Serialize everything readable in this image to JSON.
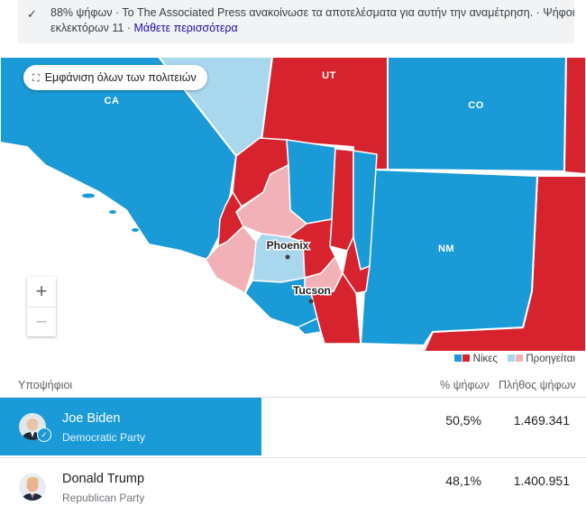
{
  "banner": {
    "check_icon": "✓",
    "line1": "88% ψήφων · Το The Associated Press ανακοίνωσε τα αποτελέσματα για αυτήν την αναμέτρηση. · Ψήφοι",
    "line2_prefix": "εκλεκτόρων 11 · ",
    "learn_more": "Μάθετε περισσότερα"
  },
  "map": {
    "show_all_icon": "expand-icon",
    "show_all_label": "Εμφάνιση όλων των πολιτειών",
    "states": {
      "ca": "CA",
      "ut": "UT",
      "co": "CO",
      "nm": "NM"
    },
    "cities": {
      "phoenix": "Phoenix",
      "tucson": "Tucson"
    },
    "zoom_in": "+",
    "zoom_out": "−",
    "colors": {
      "dem_win": "#1a9ad6",
      "rep_win": "#d7232e",
      "dem_lead": "#a8d7ee",
      "rep_lead": "#f2b1b6"
    }
  },
  "legend": {
    "wins": "Νίκες",
    "leading": "Προηγείται"
  },
  "table": {
    "headers": {
      "candidates": "Υποψήφιοι",
      "pct": "% ψήφων",
      "votes": "Πλήθος ψήφων"
    },
    "rows": [
      {
        "name": "Joe Biden",
        "party": "Democratic Party",
        "pct": "50,5%",
        "votes": "1.469.341",
        "winner": true
      },
      {
        "name": "Donald Trump",
        "party": "Republican Party",
        "pct": "48,1%",
        "votes": "1.400.951",
        "winner": false
      }
    ]
  }
}
